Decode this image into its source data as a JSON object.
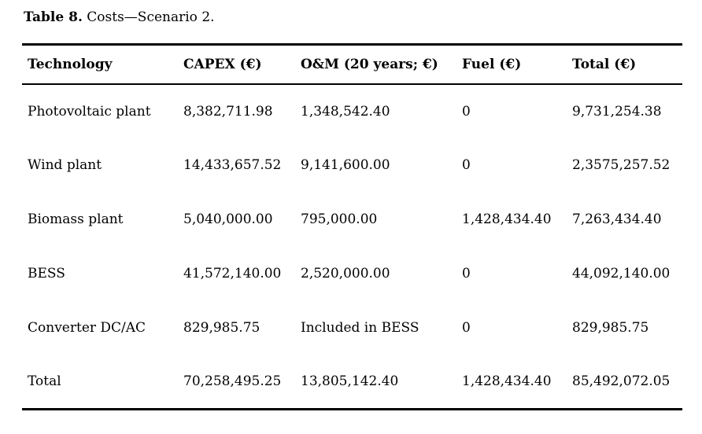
{
  "title": {
    "label": "Table 8.",
    "caption": "Costs—Scenario 2."
  },
  "table": {
    "columns": [
      "Technology",
      "CAPEX (€)",
      "O&M (20 years; €)",
      "Fuel (€)",
      "Total (€)"
    ],
    "rows": [
      [
        "Photovoltaic plant",
        "8,382,711.98",
        "1,348,542.40",
        "0",
        "9,731,254.38"
      ],
      [
        "Wind plant",
        "14,433,657.52",
        "9,141,600.00",
        "0",
        "2,3575,257.52"
      ],
      [
        "Biomass plant",
        "5,040,000.00",
        "795,000.00",
        "1,428,434.40",
        "7,263,434.40"
      ],
      [
        "BESS",
        "41,572,140.00",
        "2,520,000.00",
        "0",
        "44,092,140.00"
      ],
      [
        "Converter DC/AC",
        "829,985.75",
        "Included in BESS",
        "0",
        "829,985.75"
      ],
      [
        "Total",
        "70,258,495.25",
        "13,805,142.40",
        "1,428,434.40",
        "85,492,072.05"
      ]
    ]
  },
  "colors": {
    "text": "#000000",
    "rule": "#000000",
    "background": "#ffffff"
  }
}
